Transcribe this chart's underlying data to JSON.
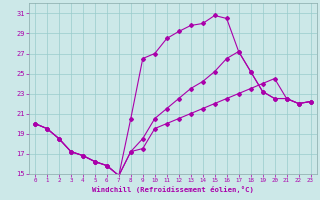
{
  "title": "",
  "xlabel": "Windchill (Refroidissement éolien,°C)",
  "xlim": [
    -0.5,
    23.5
  ],
  "ylim": [
    15,
    32
  ],
  "xticks": [
    0,
    1,
    2,
    3,
    4,
    5,
    6,
    7,
    8,
    9,
    10,
    11,
    12,
    13,
    14,
    15,
    16,
    17,
    18,
    19,
    20,
    21,
    22,
    23
  ],
  "yticks": [
    15,
    17,
    19,
    21,
    23,
    25,
    27,
    29,
    31
  ],
  "bg_color": "#cce8e8",
  "line_color": "#aa00aa",
  "grid_color": "#99cccc",
  "line1_x": [
    0,
    1,
    2,
    3,
    4,
    5,
    6,
    7,
    8,
    9,
    10,
    11,
    12,
    13,
    14,
    15,
    16,
    17,
    18,
    19,
    20,
    21,
    22,
    23
  ],
  "line1_y": [
    20.0,
    19.5,
    18.5,
    17.2,
    16.8,
    16.2,
    15.8,
    14.8,
    17.2,
    17.5,
    19.5,
    20.0,
    20.5,
    21.0,
    21.5,
    22.0,
    22.5,
    23.0,
    23.5,
    24.0,
    24.5,
    22.5,
    22.0,
    22.2
  ],
  "line2_x": [
    0,
    1,
    2,
    3,
    4,
    5,
    6,
    7,
    8,
    9,
    10,
    11,
    12,
    13,
    14,
    15,
    16,
    17,
    18,
    19,
    20,
    21,
    22,
    23
  ],
  "line2_y": [
    20.0,
    19.5,
    18.5,
    17.2,
    16.8,
    16.2,
    15.8,
    14.8,
    20.5,
    26.5,
    27.0,
    28.5,
    29.2,
    29.8,
    30.0,
    30.8,
    30.5,
    27.2,
    25.2,
    23.2,
    22.5,
    22.5,
    22.0,
    22.2
  ],
  "line3_x": [
    0,
    1,
    2,
    3,
    4,
    5,
    6,
    7,
    8,
    9,
    10,
    11,
    12,
    13,
    14,
    15,
    16,
    17,
    18,
    19,
    20,
    21,
    22,
    23
  ],
  "line3_y": [
    20.0,
    19.5,
    18.5,
    17.2,
    16.8,
    16.2,
    15.8,
    14.8,
    17.2,
    18.5,
    20.5,
    21.5,
    22.5,
    23.5,
    24.2,
    25.2,
    26.5,
    27.2,
    25.2,
    23.2,
    22.5,
    22.5,
    22.0,
    22.2
  ]
}
